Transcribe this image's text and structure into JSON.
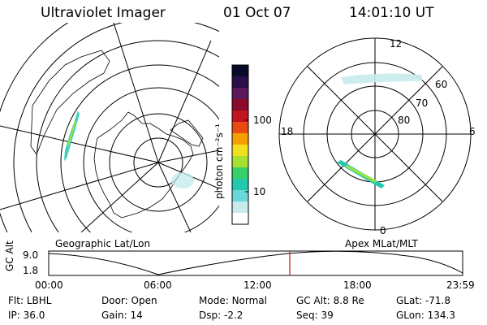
{
  "header": {
    "title": "Ultraviolet Imager",
    "date": "01 Oct 07",
    "time": "14:01:10 UT"
  },
  "colorbar": {
    "unit_label": "photon cm⁻²s⁻¹",
    "ticks": [
      "100",
      "10"
    ],
    "colors": [
      "#0a0a2a",
      "#2a1048",
      "#5a1a5a",
      "#8a0a2a",
      "#c0141e",
      "#e84a10",
      "#f5a000",
      "#f0e020",
      "#a8e030",
      "#38d068",
      "#22c8b0",
      "#6ad8d8",
      "#c8ecec",
      "#ffffff"
    ]
  },
  "geo_map": {
    "label": "Geographic Lat/Lon",
    "aurora_color": "#22c8b0"
  },
  "polar_map": {
    "label": "Apex MLat/MLT",
    "hour_labels": {
      "top": "12",
      "left": "18",
      "right": "6",
      "bottom": "0"
    },
    "lat_labels": [
      "60",
      "70",
      "80"
    ]
  },
  "timeline": {
    "axis_label": "GC Alt",
    "y_top": "9.0",
    "y_bottom": "1.8",
    "x_ticks": [
      "00:00",
      "06:00",
      "12:00",
      "18:00",
      "23:59"
    ],
    "current_marker_color": "#d01010"
  },
  "info": {
    "row1": [
      {
        "k": "Flt:",
        "v": "LBHL"
      },
      {
        "k": "Door:",
        "v": "Open"
      },
      {
        "k": "Mode:",
        "v": "Normal"
      },
      {
        "k": "GC Alt:",
        "v": "8.8 Re"
      },
      {
        "k": "GLat:",
        "v": "-71.8"
      }
    ],
    "row2": [
      {
        "k": "IP:",
        "v": "36.0"
      },
      {
        "k": "Gain:",
        "v": "14"
      },
      {
        "k": "Dsp:",
        "v": "-2.2"
      },
      {
        "k": "Seq:",
        "v": "39"
      },
      {
        "k": "GLon:",
        "v": "134.3"
      }
    ]
  }
}
